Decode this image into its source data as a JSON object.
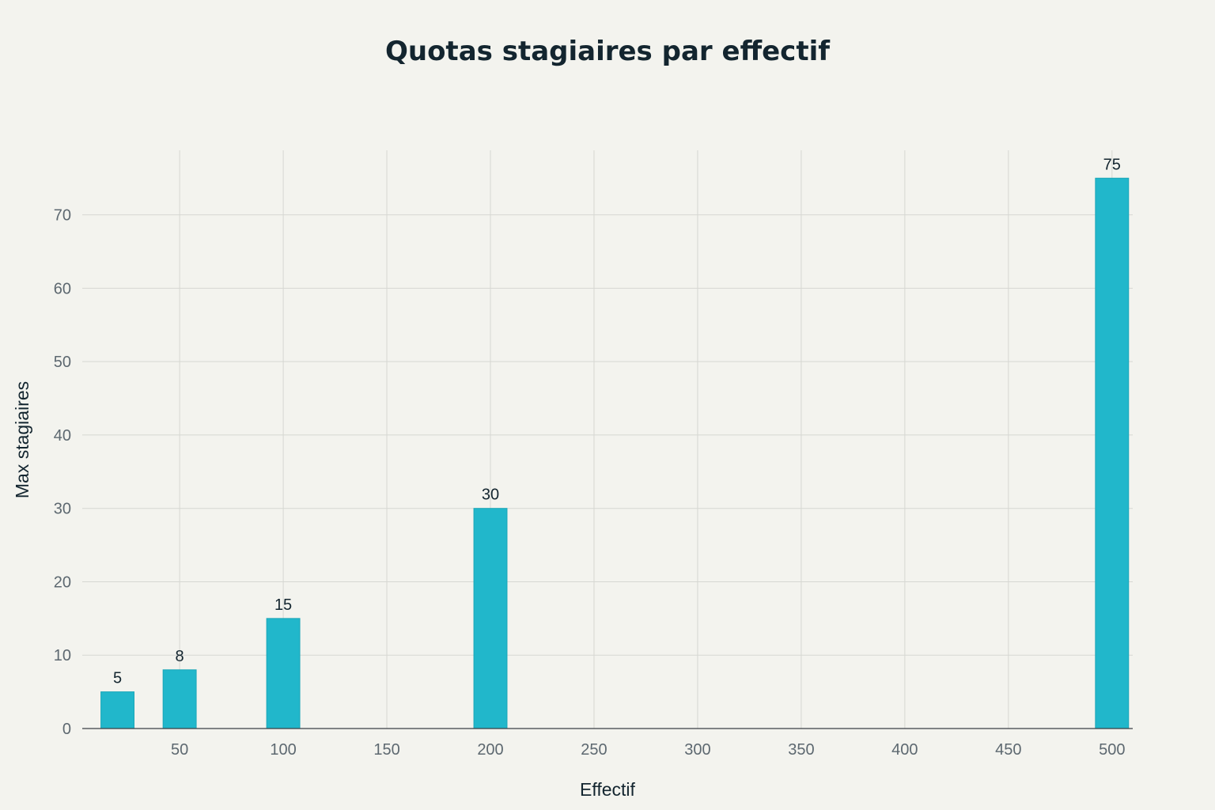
{
  "chart_data": {
    "type": "bar",
    "title": "Quotas stagiaires par effectif",
    "xlabel": "Effectif",
    "ylabel": "Max stagiaires",
    "x": [
      20,
      50,
      100,
      200,
      500
    ],
    "values": [
      5,
      8,
      15,
      30,
      75
    ],
    "data_labels": [
      "5",
      "8",
      "15",
      "30",
      "75"
    ],
    "xlim": [
      3,
      510
    ],
    "ylim": [
      0,
      80
    ],
    "x_ticks": [
      50,
      100,
      150,
      200,
      250,
      300,
      350,
      400,
      450,
      500
    ],
    "x_tick_labels": [
      "50",
      "100",
      "150",
      "200",
      "250",
      "300",
      "350",
      "400",
      "450",
      "500"
    ],
    "y_ticks": [
      0,
      10,
      20,
      30,
      40,
      50,
      60,
      70
    ],
    "y_tick_labels": [
      "0",
      "10",
      "20",
      "30",
      "40",
      "50",
      "60",
      "70"
    ],
    "bar_width": 16,
    "grid": true,
    "legend": "none",
    "colors": {
      "bar": "#21b7cb",
      "background": "#f3f3ee",
      "grid": "#d6d7d2",
      "text": "#13252f",
      "tick_text": "#5d6870"
    }
  }
}
